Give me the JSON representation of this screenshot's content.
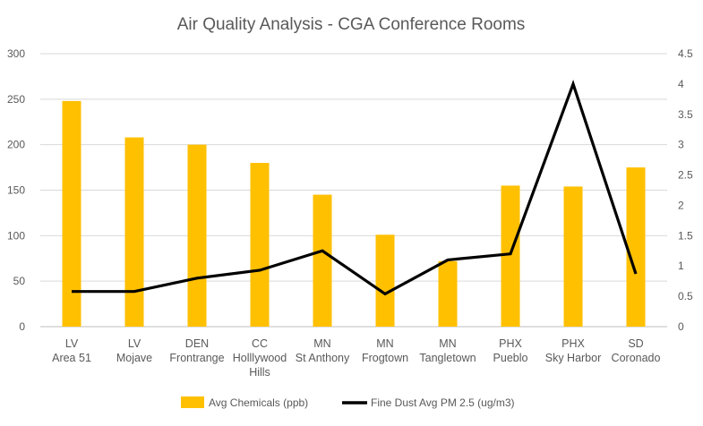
{
  "chart_data": {
    "type": "bar+line",
    "title": "Air Quality Analysis - CGA Conference Rooms",
    "categories": [
      [
        "LV",
        "Area 51"
      ],
      [
        "LV",
        "Mojave"
      ],
      [
        "DEN",
        "Frontrange"
      ],
      [
        "CC",
        "Holllywood",
        "Hills"
      ],
      [
        "MN",
        "St Anthony"
      ],
      [
        "MN",
        "Frogtown"
      ],
      [
        "MN",
        "Tangletown"
      ],
      [
        "PHX",
        "Pueblo"
      ],
      [
        "PHX",
        "Sky Harbor"
      ],
      [
        "SD",
        "Coronado"
      ]
    ],
    "series": [
      {
        "name": "Avg Chemicals (ppb)",
        "type": "bar",
        "axis": "left",
        "color": "#FFC000",
        "values": [
          248,
          208,
          200,
          180,
          145,
          101,
          72,
          155,
          154,
          175
        ]
      },
      {
        "name": "Fine Dust Avg PM 2.5 (ug/m3)",
        "type": "line",
        "axis": "right",
        "color": "#000000",
        "values": [
          0.58,
          0.58,
          0.8,
          0.93,
          1.25,
          0.54,
          1.1,
          1.2,
          4.0,
          0.87
        ]
      }
    ],
    "y_left": {
      "min": 0,
      "max": 300,
      "step": 50,
      "ticks": [
        "0",
        "50",
        "100",
        "150",
        "200",
        "250",
        "300"
      ]
    },
    "y_right": {
      "min": 0,
      "max": 4.5,
      "step": 0.5,
      "ticks": [
        "0",
        "0.5",
        "1",
        "1.5",
        "2",
        "2.5",
        "3",
        "3.5",
        "4",
        "4.5"
      ]
    },
    "grid": true,
    "legend_position": "bottom"
  }
}
